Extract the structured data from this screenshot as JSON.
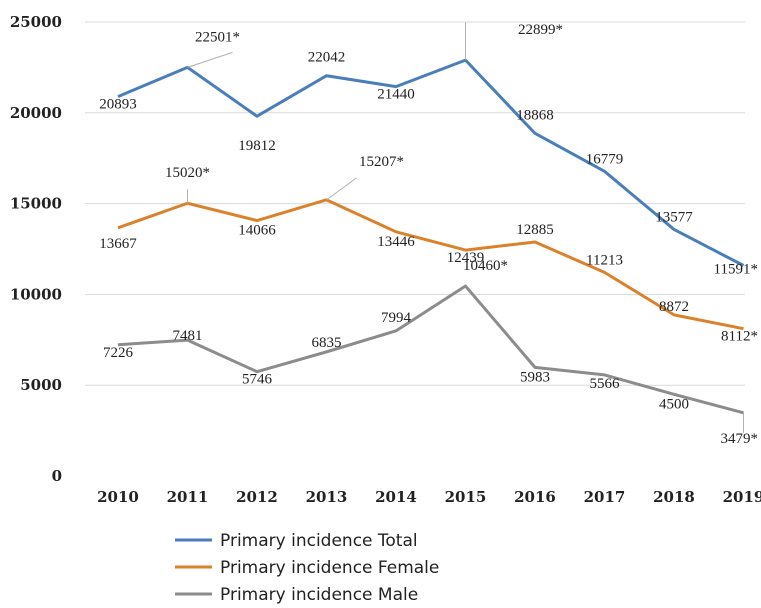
{
  "chart_data": {
    "type": "line",
    "title": "",
    "xlabel": "",
    "ylabel": "",
    "categories": [
      "2010",
      "2011",
      "2012",
      "2013",
      "2014",
      "2015",
      "2016",
      "2017",
      "2018",
      "2019"
    ],
    "ylim": [
      0,
      25000
    ],
    "yticks": [
      0,
      5000,
      10000,
      15000,
      20000,
      25000
    ],
    "grid": true,
    "legend_position": "bottom",
    "series": [
      {
        "name": "Primary incidence Total",
        "color": "#4a7ebb",
        "values": [
          20893,
          22501,
          19812,
          22042,
          21440,
          22899,
          18868,
          16779,
          13577,
          11591
        ],
        "labels": [
          "20893",
          "22501*",
          "19812",
          "22042",
          "21440",
          "22899*",
          "18868",
          "16779",
          "13577",
          "11591*"
        ]
      },
      {
        "name": "Primary incidence Female",
        "color": "#d9822b",
        "values": [
          13667,
          15020,
          14066,
          15207,
          13446,
          12439,
          12885,
          11213,
          8872,
          8112
        ],
        "labels": [
          "13667",
          "15020*",
          "14066",
          "15207*",
          "13446",
          "12439",
          "12885",
          "11213",
          "8872",
          "8112*"
        ]
      },
      {
        "name": "Primary incidence Male",
        "color": "#8c8c8c",
        "values": [
          7226,
          7481,
          5746,
          6835,
          7994,
          10460,
          5983,
          5566,
          4500,
          3479
        ],
        "labels": [
          "7226",
          "7481",
          "5746",
          "6835",
          "7994",
          "10460*",
          "5983",
          "5566",
          "4500",
          "3479*"
        ]
      }
    ]
  }
}
